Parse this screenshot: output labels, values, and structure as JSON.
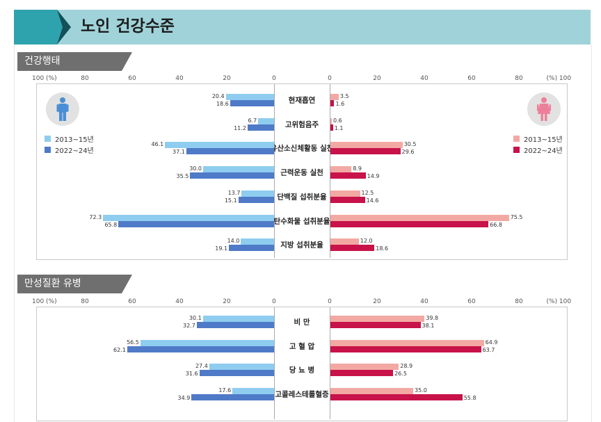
{
  "header": {
    "title": "노인 건강수준"
  },
  "colors": {
    "male_2013": "#8ecdef",
    "male_2022": "#4f7ac7",
    "female_2013": "#f3a9a3",
    "female_2022": "#c8124a",
    "header_bg": "#9fd3d9",
    "label_bg": "#6f6f6f"
  },
  "axis": {
    "left_ticks": [
      "100 (%)",
      "80",
      "60",
      "40",
      "20",
      "0"
    ],
    "right_ticks": [
      "0",
      "20",
      "40",
      "60",
      "80",
      "(%) 100"
    ]
  },
  "legend": {
    "item1": "2013~15년",
    "item2": "2022~24년"
  },
  "chart_data": [
    {
      "type": "bar",
      "section": "건강행태",
      "categories": [
        "현재흡연",
        "고위험음주",
        "유산소신체활동 실천",
        "근력운동 실천",
        "단백질 섭취분율",
        "탄수화물 섭취분율",
        "지방 섭취분율"
      ],
      "male": {
        "2013~15년": [
          20.4,
          6.7,
          46.1,
          30.0,
          13.7,
          72.3,
          14.0
        ],
        "2022~24년": [
          18.6,
          11.2,
          37.1,
          35.5,
          15.1,
          65.8,
          19.1
        ]
      },
      "female": {
        "2013~15년": [
          3.5,
          0.6,
          30.5,
          8.9,
          12.5,
          75.5,
          12.0
        ],
        "2022~24년": [
          1.6,
          1.1,
          29.6,
          14.9,
          14.6,
          66.8,
          18.6
        ]
      },
      "xlim": [
        0,
        100
      ]
    },
    {
      "type": "bar",
      "section": "만성질환 유병",
      "categories": [
        "비 만",
        "고 혈 압",
        "당 뇨 병",
        "고콜레스테롤혈증"
      ],
      "male": {
        "2013~15년": [
          30.1,
          56.5,
          27.4,
          17.6
        ],
        "2022~24년": [
          32.7,
          62.1,
          31.6,
          34.9
        ]
      },
      "female": {
        "2013~15년": [
          39.8,
          64.9,
          28.9,
          35.0
        ],
        "2022~24년": [
          38.1,
          63.7,
          26.5,
          55.8
        ]
      },
      "xlim": [
        0,
        100
      ]
    }
  ],
  "sections": [
    "건강행태",
    "만성질환 유병"
  ]
}
